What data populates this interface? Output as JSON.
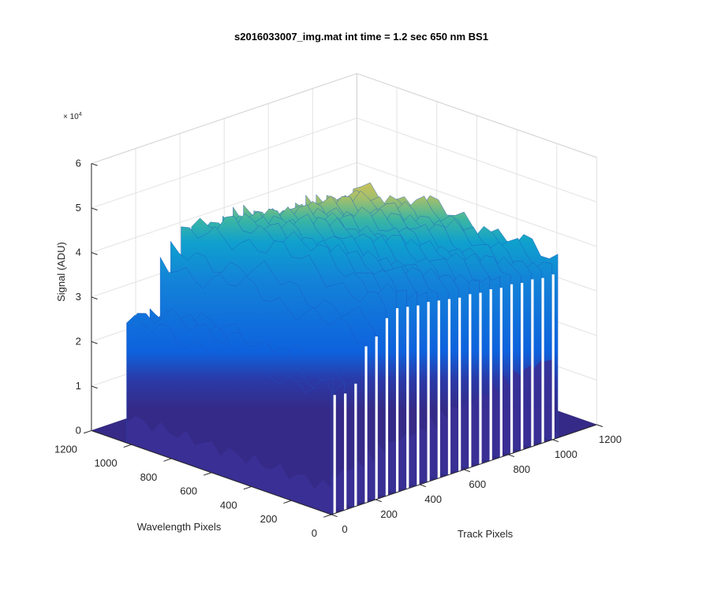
{
  "chart_data": {
    "type": "surface",
    "title": "s2016033007_img.mat int time = 1.2 sec  650 nm BS1",
    "xlabel": "Track Pixels",
    "ylabel": "Wavelength Pixels",
    "zlabel": "Signal (ADU)",
    "z_exponent_base": "× 10",
    "z_exponent_power": "4",
    "xlim": [
      0,
      1200
    ],
    "ylim": [
      0,
      1200
    ],
    "zlim": [
      0,
      60000
    ],
    "x_ticks": [
      "0",
      "200",
      "400",
      "600",
      "800",
      "1000",
      "1200"
    ],
    "y_ticks": [
      "0",
      "200",
      "400",
      "600",
      "800",
      "1000",
      "1200"
    ],
    "z_ticks": [
      "0",
      "1",
      "2",
      "3",
      "4",
      "5",
      "6"
    ],
    "grid": true,
    "colormap": [
      "#352a87",
      "#0f5cdd",
      "#1481d6",
      "#06a4ca",
      "#2eb7a4",
      "#87bf77",
      "#d1bb59",
      "#fec832",
      "#f9fb0e"
    ],
    "signal_region": {
      "wavelength_pixel_range": [
        0,
        1024
      ],
      "track_pixels": [
        0,
        10,
        58,
        105,
        152,
        199,
        246,
        293,
        340,
        387,
        434,
        481,
        528,
        575,
        622,
        669,
        716,
        763,
        810,
        857,
        904,
        951,
        998,
        1024
      ],
      "peak_signal": [
        28000,
        32000,
        30000,
        29500,
        39000,
        42000,
        47000,
        49000,
        48500,
        47500,
        48000,
        47000,
        46500,
        45000,
        45500,
        44000,
        44500,
        43500,
        43000,
        42500,
        43000,
        41500,
        42000,
        42000
      ],
      "edge_signal": [
        27000,
        28000,
        27500,
        29000,
        37000,
        38500,
        42000,
        43500,
        43000,
        42500,
        42500,
        42000,
        41500,
        41000,
        41000,
        40500,
        40500,
        40000,
        40000,
        39500,
        39500,
        39000,
        39000,
        40000
      ],
      "blue_level": [
        6000,
        7500,
        8000,
        8500,
        9000,
        9500,
        10000,
        10500,
        11000,
        11500,
        12000,
        12500,
        13000,
        13500,
        14000,
        14500,
        15000,
        15500,
        16000,
        16500,
        17000,
        17500,
        18000,
        2000
      ]
    }
  }
}
